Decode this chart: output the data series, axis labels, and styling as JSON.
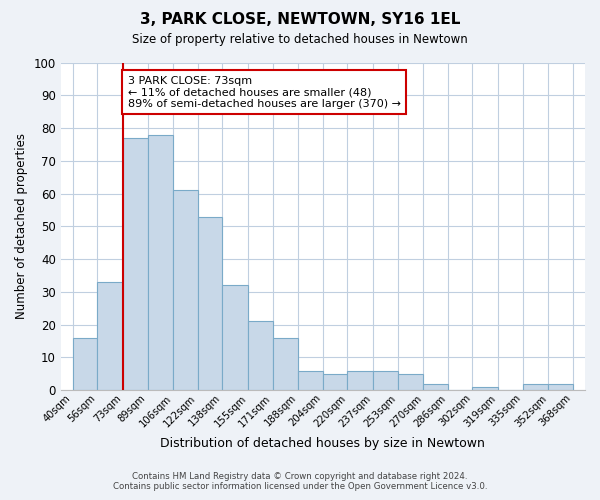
{
  "title": "3, PARK CLOSE, NEWTOWN, SY16 1EL",
  "subtitle": "Size of property relative to detached houses in Newtown",
  "xlabel": "Distribution of detached houses by size in Newtown",
  "ylabel": "Number of detached properties",
  "bin_edges": [
    40,
    56,
    73,
    89,
    106,
    122,
    138,
    155,
    171,
    188,
    204,
    220,
    237,
    253,
    270,
    286,
    302,
    319,
    335,
    352,
    368
  ],
  "bin_labels": [
    "40sqm",
    "56sqm",
    "73sqm",
    "89sqm",
    "106sqm",
    "122sqm",
    "138sqm",
    "155sqm",
    "171sqm",
    "188sqm",
    "204sqm",
    "220sqm",
    "237sqm",
    "253sqm",
    "270sqm",
    "286sqm",
    "302sqm",
    "319sqm",
    "335sqm",
    "352sqm",
    "368sqm"
  ],
  "bar_values": [
    16,
    33,
    77,
    78,
    61,
    53,
    32,
    21,
    16,
    6,
    5,
    6,
    6,
    5,
    2,
    0,
    1,
    0,
    2,
    2
  ],
  "bar_color": "#c8d8e8",
  "bar_edge_color": "#7aaac8",
  "highlight_line_value": 73,
  "highlight_line_color": "#cc0000",
  "annotation_text": "3 PARK CLOSE: 73sqm\n← 11% of detached houses are smaller (48)\n89% of semi-detached houses are larger (370) →",
  "annotation_box_color": "#ffffff",
  "annotation_box_edge_color": "#cc0000",
  "ylim": [
    0,
    100
  ],
  "yticks": [
    0,
    10,
    20,
    30,
    40,
    50,
    60,
    70,
    80,
    90,
    100
  ],
  "footer_line1": "Contains HM Land Registry data © Crown copyright and database right 2024.",
  "footer_line2": "Contains public sector information licensed under the Open Government Licence v3.0.",
  "bg_color": "#eef2f7",
  "plot_bg_color": "#ffffff",
  "grid_color": "#c0cfe0"
}
